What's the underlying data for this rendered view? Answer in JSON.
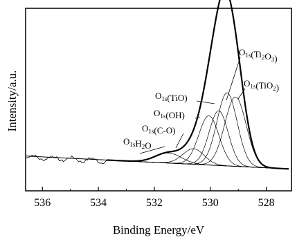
{
  "chart_data": {
    "type": "line",
    "xlabel": "Binding Energy/eV",
    "ylabel": "Intensity/a.u.",
    "xlim": [
      536.6,
      527.1
    ],
    "ylim": [
      0,
      100
    ],
    "x_ticks": [
      536,
      534,
      532,
      530,
      528
    ],
    "x_tick_labels": [
      "536",
      "534",
      "532",
      "530",
      "528"
    ],
    "x_reversed": true,
    "grid": false,
    "legend": "none",
    "background": {
      "start": 536.6,
      "end": 527.2
    },
    "series": [
      {
        "role": "raw",
        "x0": 536.6,
        "x1": 533.7
      },
      {
        "role": "envelope",
        "x0": 533.7,
        "x1": 527.2
      }
    ],
    "components": [
      {
        "id": "h2o",
        "center": 531.5,
        "height": 5.5,
        "fwhm": 1.1
      },
      {
        "id": "co",
        "center": 530.6,
        "height": 8.5,
        "fwhm": 0.9
      },
      {
        "id": "oh",
        "center": 530.05,
        "height": 27,
        "fwhm": 0.85
      },
      {
        "id": "tio",
        "center": 529.7,
        "height": 30,
        "fwhm": 0.8
      },
      {
        "id": "ti2o3",
        "center": 529.4,
        "height": 40,
        "fwhm": 0.85
      },
      {
        "id": "tio2",
        "center": 529.1,
        "height": 38,
        "fwhm": 0.9
      }
    ],
    "annotations": [
      {
        "id": "h2o",
        "main": "O",
        "sub": "1s",
        "rest": "H",
        "sub2": "2",
        "rest2": "O",
        "target_x": 531.5
      },
      {
        "id": "co",
        "main": "O",
        "sub": "1s",
        "rest": "(C-O)",
        "target_x": 530.6
      },
      {
        "id": "oh",
        "main": "O",
        "sub": "1s",
        "rest": "(OH)",
        "target_x": 530.05
      },
      {
        "id": "tio",
        "main": "O",
        "sub": "1s",
        "rest": "(TiO)",
        "target_x": 529.7
      },
      {
        "id": "ti2o3",
        "main": "O",
        "sub": "1s",
        "rest": "(Ti",
        "sub2": "2",
        "rest2": "O",
        "sub3": "3",
        "rest3": ")",
        "target_x": 529.4
      },
      {
        "id": "tio2",
        "main": "O",
        "sub": "1s",
        "rest": "(TiO",
        "sub2": "2",
        "rest2": ")",
        "target_x": 529.1
      }
    ]
  }
}
